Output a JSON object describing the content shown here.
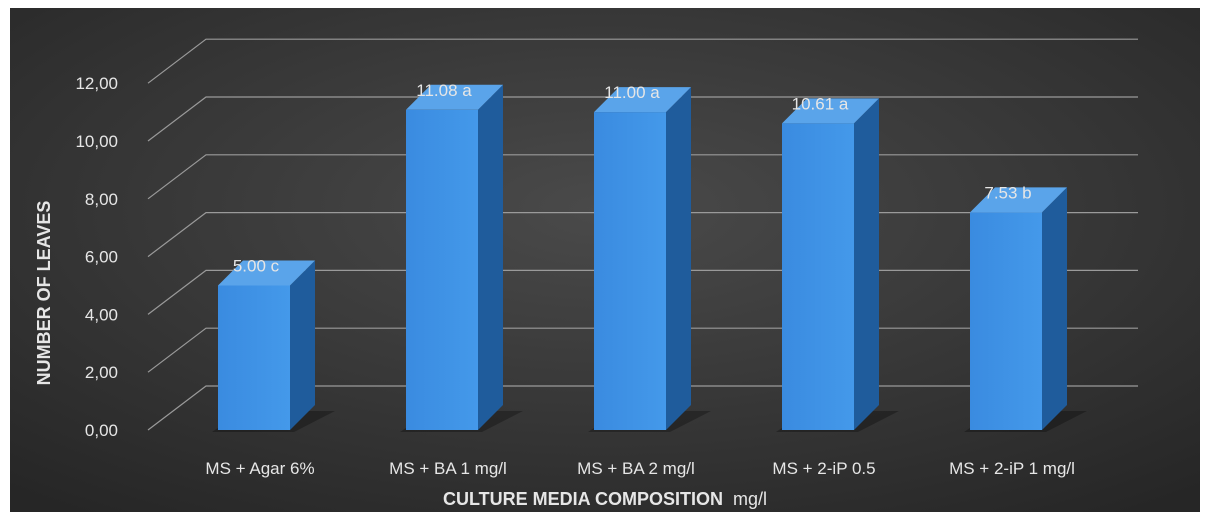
{
  "chart_data": {
    "type": "bar",
    "categories": [
      "MS + Agar 6%",
      "MS + BA 1 mg/l",
      "MS + BA 2 mg/l",
      "MS + 2-iP 0.5",
      "MS + 2-iP 1 mg/l"
    ],
    "values": [
      5.0,
      11.08,
      11.0,
      10.61,
      7.53
    ],
    "data_labels": [
      "5.00 c",
      "11.08 a",
      "11.00 a",
      "10.61 a",
      "7.53 b"
    ],
    "ylabel": "NUMBER OF LEAVES",
    "xlabel": "CULTURE MEDIA COMPOSITION",
    "xlabel_unit": "mg/l",
    "yticks": [
      "0,00",
      "2,00",
      "4,00",
      "6,00",
      "8,00",
      "10,00",
      "12,00"
    ],
    "ylim": [
      0,
      14
    ],
    "grid": true,
    "style": "3d-column",
    "colors": {
      "background": "#3a3a3a",
      "bar_front": "#3d8fe0",
      "bar_side": "#1f5c9c",
      "bar_top": "#5aa4ea",
      "grid": "#9a9a9a",
      "text": "#e6e6e6"
    }
  }
}
